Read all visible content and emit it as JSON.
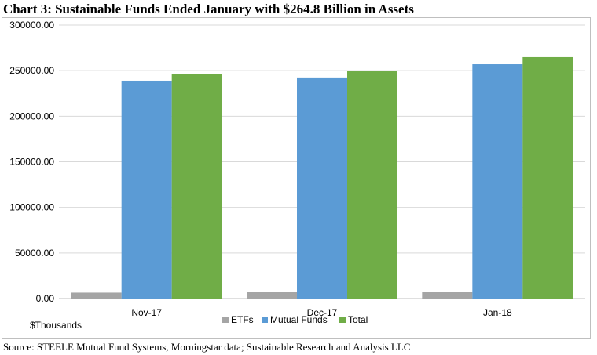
{
  "title": "Chart 3:  Sustainable Funds Ended January with $264.8 Billion in Assets",
  "units_label": "$Thousands",
  "source": "Source:  STEELE Mutual Fund Systems, Morningstar data; Sustainable Research and Analysis LLC",
  "chart_data": {
    "type": "bar",
    "categories": [
      "Nov-17",
      "Dec-17",
      "Jan-18"
    ],
    "series": [
      {
        "name": "ETFs",
        "values": [
          6500,
          7000,
          7600
        ],
        "color": "#a5a5a5"
      },
      {
        "name": "Mutual Funds",
        "values": [
          239000,
          242500,
          257000
        ],
        "color": "#5b9bd5"
      },
      {
        "name": "Total",
        "values": [
          246000,
          250000,
          264800
        ],
        "color": "#70ad47"
      }
    ],
    "ylim": [
      0,
      300000
    ],
    "yticks": [
      "0.00",
      "50000.00",
      "100000.00",
      "150000.00",
      "200000.00",
      "250000.00",
      "300000.00"
    ],
    "ytick_values": [
      0,
      50000,
      100000,
      150000,
      200000,
      250000,
      300000
    ],
    "grid": true,
    "legend_position": "bottom"
  }
}
